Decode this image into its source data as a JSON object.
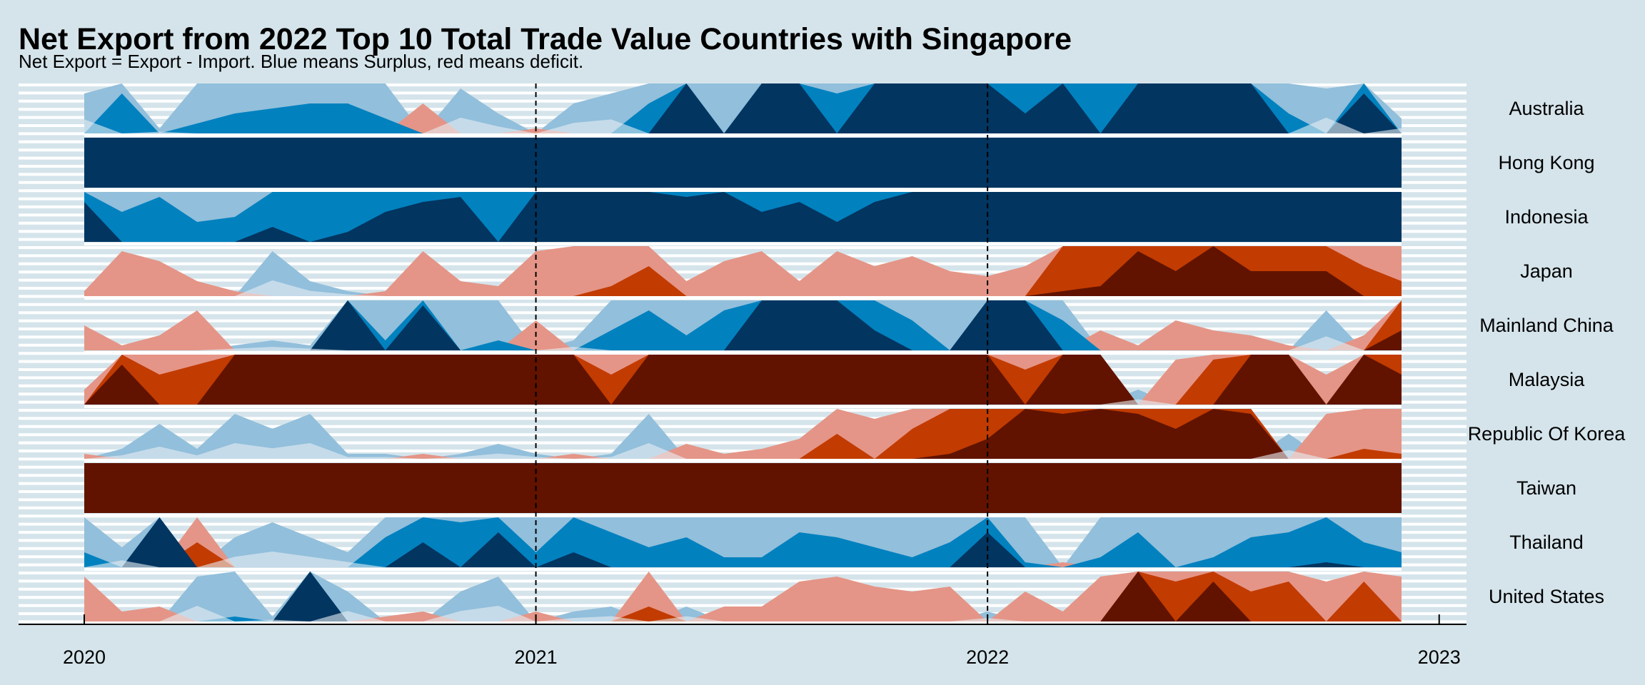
{
  "chart_data": {
    "type": "area",
    "subtype": "horizon",
    "title": "Net Export from 2022 Top 10 Total Trade Value Countries with Singapore",
    "subtitle": "Net Export = Export - Import. Blue means Surplus, red means deficit.",
    "x_ticks": [
      "2020",
      "2021",
      "2022",
      "2023"
    ],
    "x_range": [
      "2020-01",
      "2023-01"
    ],
    "months": [
      "2020-01",
      "2020-02",
      "2020-03",
      "2020-04",
      "2020-05",
      "2020-06",
      "2020-07",
      "2020-08",
      "2020-09",
      "2020-10",
      "2020-11",
      "2020-12",
      "2021-01",
      "2021-02",
      "2021-03",
      "2021-04",
      "2021-05",
      "2021-06",
      "2021-07",
      "2021-08",
      "2021-09",
      "2021-10",
      "2021-11",
      "2021-12",
      "2022-01",
      "2022-02",
      "2022-03",
      "2022-04",
      "2022-05",
      "2022-06",
      "2022-07",
      "2022-08",
      "2022-09",
      "2022-10",
      "2022-11",
      "2022-12"
    ],
    "reference_lines": [
      "2021-01",
      "2022-01"
    ],
    "horizon_band_levels": 3,
    "positive_colors": [
      "#92bfdb",
      "#0281bf",
      "#023560"
    ],
    "negative_colors": [
      "#e49587",
      "#c23b00",
      "#611300"
    ],
    "near_zero_positive_color": "#e8eff4",
    "near_zero_negative_color": "#f3dcdc",
    "legend": "none",
    "grid": true,
    "series": [
      {
        "name": "Australia",
        "values": [
          0.8,
          1.8,
          0.1,
          1.2,
          1.4,
          1.5,
          1.6,
          1.6,
          1.3,
          -0.6,
          0.9,
          0.4,
          -0.1,
          0.6,
          0.8,
          1.6,
          3.0,
          1.0,
          3.0,
          3.0,
          1.8,
          3.0,
          3.0,
          3.0,
          3.0,
          2.4,
          3.0,
          2.0,
          3.0,
          3.0,
          3.0,
          3.0,
          1.4,
          0.9,
          2.8,
          0.3
        ]
      },
      {
        "name": "Hong Kong",
        "values": [
          3,
          3,
          3,
          3,
          3,
          3,
          3,
          3,
          3,
          3,
          3,
          3,
          3,
          3,
          3,
          3,
          3,
          3,
          3,
          3,
          3,
          3,
          3,
          3,
          3,
          3,
          3,
          3,
          3,
          3,
          3,
          3,
          3,
          3,
          3,
          3
        ]
      },
      {
        "name": "Indonesia",
        "values": [
          2.8,
          1.6,
          1.9,
          1.4,
          1.5,
          2.3,
          2.0,
          2.2,
          2.6,
          2.8,
          2.9,
          2.0,
          3.0,
          3.0,
          3.0,
          3.0,
          2.9,
          3.0,
          2.6,
          2.8,
          2.4,
          2.8,
          3.0,
          3.0,
          3.0,
          3.0,
          3.0,
          3.0,
          3.0,
          3.0,
          3.0,
          3.0,
          3.0,
          3.0,
          3.0,
          3.0
        ]
      },
      {
        "name": "Japan",
        "values": [
          -0.1,
          -0.9,
          -0.7,
          -0.3,
          -0.1,
          0.9,
          0.3,
          0.1,
          -0.1,
          -0.9,
          -0.3,
          -0.2,
          -0.9,
          -1.0,
          -1.2,
          -1.6,
          -0.3,
          -0.7,
          -0.9,
          -0.3,
          -0.9,
          -0.6,
          -0.8,
          -0.5,
          -0.4,
          -0.6,
          -2.1,
          -2.2,
          -2.9,
          -2.5,
          -3.0,
          -2.5,
          -2.5,
          -2.5,
          -1.6,
          -1.3
        ]
      },
      {
        "name": "Mainland China",
        "values": [
          -0.5,
          -0.1,
          -0.3,
          -0.8,
          0.1,
          0.2,
          0.1,
          3.0,
          1.2,
          2.9,
          1.0,
          1.2,
          -0.6,
          0.2,
          1.4,
          1.8,
          1.3,
          1.8,
          3.0,
          3.0,
          3.0,
          2.4,
          1.6,
          1.0,
          3.0,
          3.0,
          1.6,
          -0.4,
          -0.1,
          -0.6,
          -0.4,
          -0.3,
          -0.1,
          0.8,
          -0.3,
          -2.4
        ]
      },
      {
        "name": "Malaysia",
        "values": [
          -0.3,
          -2.8,
          -1.6,
          -1.8,
          -3.0,
          -3.0,
          -3.0,
          -3.0,
          -3.0,
          -3.0,
          -3.0,
          -3.0,
          -3.0,
          -3.0,
          -1.6,
          -3.0,
          -3.0,
          -3.0,
          -3.0,
          -3.0,
          -3.0,
          -3.0,
          -3.0,
          -3.0,
          -3.0,
          -1.7,
          -3.0,
          -3.0,
          0.3,
          -0.9,
          -1.9,
          -3.0,
          -3.0,
          -0.6,
          -3.0,
          -2.6
        ]
      },
      {
        "name": "Republic Of Korea",
        "values": [
          -0.1,
          0.2,
          0.7,
          0.2,
          0.9,
          0.6,
          0.9,
          0.1,
          0.1,
          -0.1,
          0.1,
          0.3,
          0.1,
          -0.1,
          0.1,
          0.9,
          -0.3,
          -0.1,
          -0.2,
          -0.4,
          -1.5,
          -0.8,
          -1.6,
          -2.1,
          -2.4,
          -3.0,
          -2.9,
          -3.0,
          -2.9,
          -2.6,
          -3.0,
          -2.9,
          0.5,
          -0.9,
          -1.2,
          -1.1
        ]
      },
      {
        "name": "Taiwan",
        "values": [
          -3,
          -3,
          -3,
          -3,
          -3,
          -3,
          -3,
          -3,
          -3,
          -3,
          -3,
          -3,
          -3,
          -3,
          -3,
          -3,
          -3,
          -3,
          -3,
          -3,
          -3,
          -3,
          -3,
          -3,
          -3,
          -3,
          -3,
          -3,
          -3,
          -3,
          -3,
          -3,
          -3,
          -3,
          -3,
          -3
        ]
      },
      {
        "name": "Thailand",
        "values": [
          1.3,
          0.4,
          3.0,
          -1.5,
          0.6,
          0.9,
          0.6,
          0.3,
          1.6,
          2.5,
          1.9,
          2.7,
          1.3,
          2.3,
          1.7,
          1.4,
          1.6,
          1.2,
          1.2,
          1.7,
          1.6,
          1.4,
          1.2,
          1.5,
          2.7,
          1.1,
          -0.1,
          1.2,
          1.7,
          1.0,
          1.2,
          1.6,
          1.7,
          2.1,
          1.5,
          1.3
        ]
      },
      {
        "name": "United States",
        "values": [
          -0.9,
          -0.2,
          -0.3,
          0.9,
          1.1,
          0.1,
          3.0,
          0.6,
          -0.1,
          -0.2,
          0.6,
          0.9,
          -0.2,
          0.2,
          0.3,
          -1.3,
          0.3,
          -0.3,
          -0.3,
          -0.8,
          -0.9,
          -0.7,
          -0.6,
          -0.7,
          0.2,
          -0.6,
          -0.2,
          -0.9,
          -3.0,
          -1.8,
          -2.8,
          -1.6,
          -1.8,
          -0.8,
          -1.8,
          -0.9
        ]
      }
    ]
  }
}
